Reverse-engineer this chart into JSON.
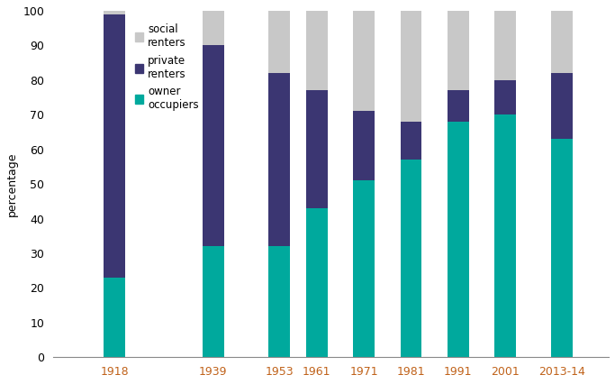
{
  "categories": [
    "1918",
    "1939",
    "1953",
    "1961",
    "1971",
    "1981",
    "1991",
    "2001",
    "2013-14"
  ],
  "x_positions": [
    1918,
    1939,
    1953,
    1961,
    1971,
    1981,
    1991,
    2001,
    2013
  ],
  "owner_occupiers": [
    23,
    32,
    32,
    43,
    51,
    57,
    68,
    70,
    63
  ],
  "private_renters": [
    76,
    58,
    50,
    34,
    20,
    11,
    9,
    10,
    19
  ],
  "social_renters": [
    1,
    10,
    18,
    23,
    29,
    32,
    23,
    20,
    18
  ],
  "color_owner": "#00a99d",
  "color_private": "#3b3672",
  "color_social": "#c8c8c8",
  "ylabel": "percentage",
  "ylim": [
    0,
    100
  ],
  "yticks": [
    0,
    10,
    20,
    30,
    40,
    50,
    60,
    70,
    80,
    90,
    100
  ],
  "bar_width": 4.5,
  "legend_labels": [
    "social\nrenters",
    "private\nrenters",
    "owner\noccupiers"
  ],
  "tick_color": "#c0621a",
  "figsize": [
    6.83,
    4.26
  ],
  "dpi": 100
}
